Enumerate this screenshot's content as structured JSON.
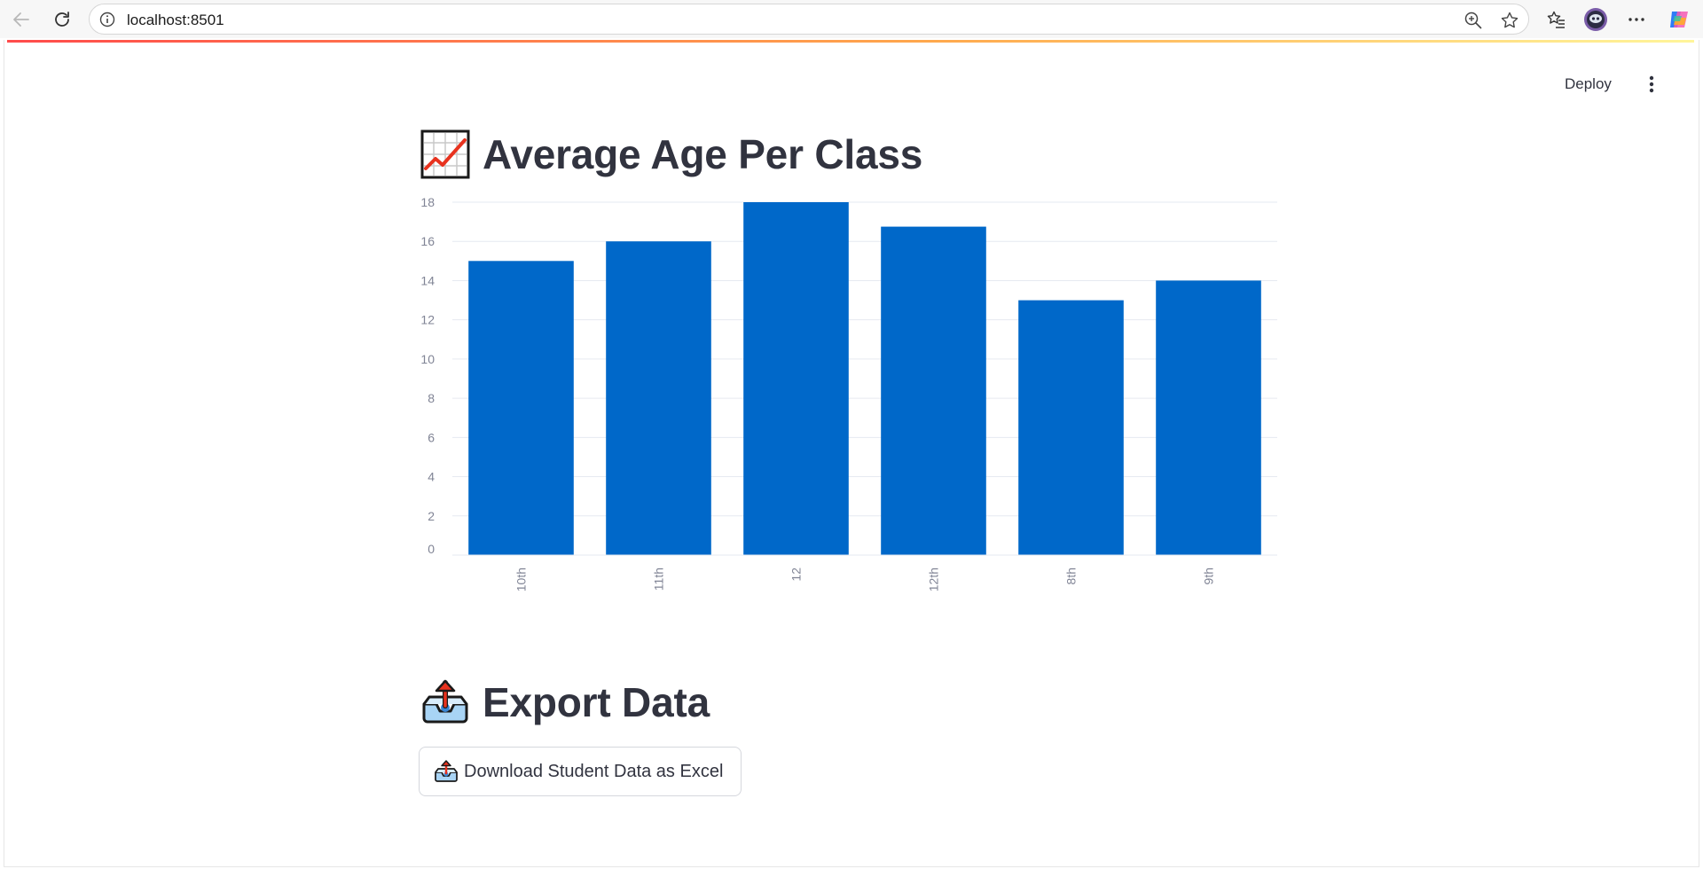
{
  "browser": {
    "url": "localhost:8501"
  },
  "app": {
    "deploy_label": "Deploy"
  },
  "headings": {
    "chart_title": "Average Age Per Class",
    "chart_title_icon": "chart-increasing-icon",
    "export_title": "Export Data",
    "export_title_icon": "outbox-tray-icon"
  },
  "download_button": {
    "label": "Download Student Data as Excel",
    "icon": "outbox-tray-icon"
  },
  "colors": {
    "bar": "#0068c9",
    "text": "#31333f",
    "axis_text": "#808495",
    "grid": "#e6eaf1"
  },
  "chart_data": {
    "type": "bar",
    "categories": [
      "10th",
      "11th",
      "12",
      "12th",
      "8th",
      "9th"
    ],
    "values": [
      15,
      16,
      18,
      16.75,
      13,
      14
    ],
    "title": "",
    "xlabel": "",
    "ylabel": "",
    "ylim": [
      0,
      18
    ],
    "yticks": [
      0,
      2,
      4,
      6,
      8,
      10,
      12,
      14,
      16,
      18
    ],
    "grid": true,
    "legend": "none"
  }
}
